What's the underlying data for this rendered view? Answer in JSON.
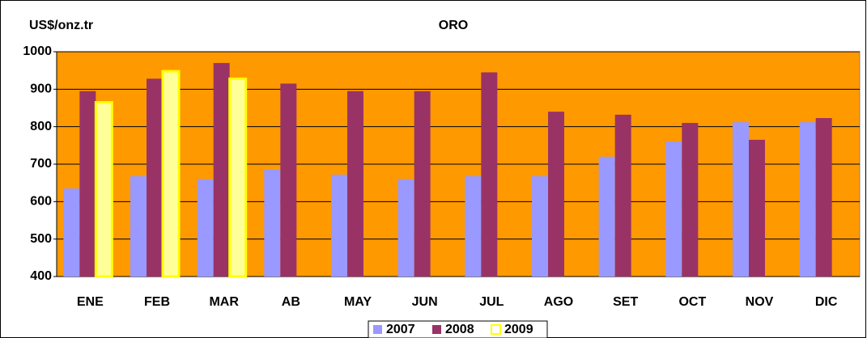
{
  "chart_data": {
    "type": "bar",
    "title": "ORO",
    "y_label": "US$/onz.tr",
    "categories": [
      "ENE",
      "FEB",
      "MAR",
      "AB",
      "MAY",
      "JUN",
      "JUL",
      "AGO",
      "SET",
      "OCT",
      "NOV",
      "DIC"
    ],
    "series": [
      {
        "name": "2007",
        "color": "#9999ff",
        "values": [
          635,
          668,
          660,
          685,
          672,
          660,
          668,
          668,
          720,
          760,
          812,
          812
        ]
      },
      {
        "name": "2008",
        "color": "#993366",
        "values": [
          895,
          928,
          970,
          915,
          895,
          895,
          945,
          840,
          832,
          810,
          765,
          823
        ]
      },
      {
        "name": "2009",
        "color": "#ffff00",
        "values": [
          865,
          948,
          928,
          null,
          null,
          null,
          null,
          null,
          null,
          null,
          null,
          null
        ]
      }
    ],
    "ylim": [
      400,
      1000
    ],
    "yticks": [
      400,
      500,
      600,
      700,
      800,
      900,
      1000
    ],
    "grid": true,
    "background": "#ff9900",
    "legend": "bottom"
  }
}
